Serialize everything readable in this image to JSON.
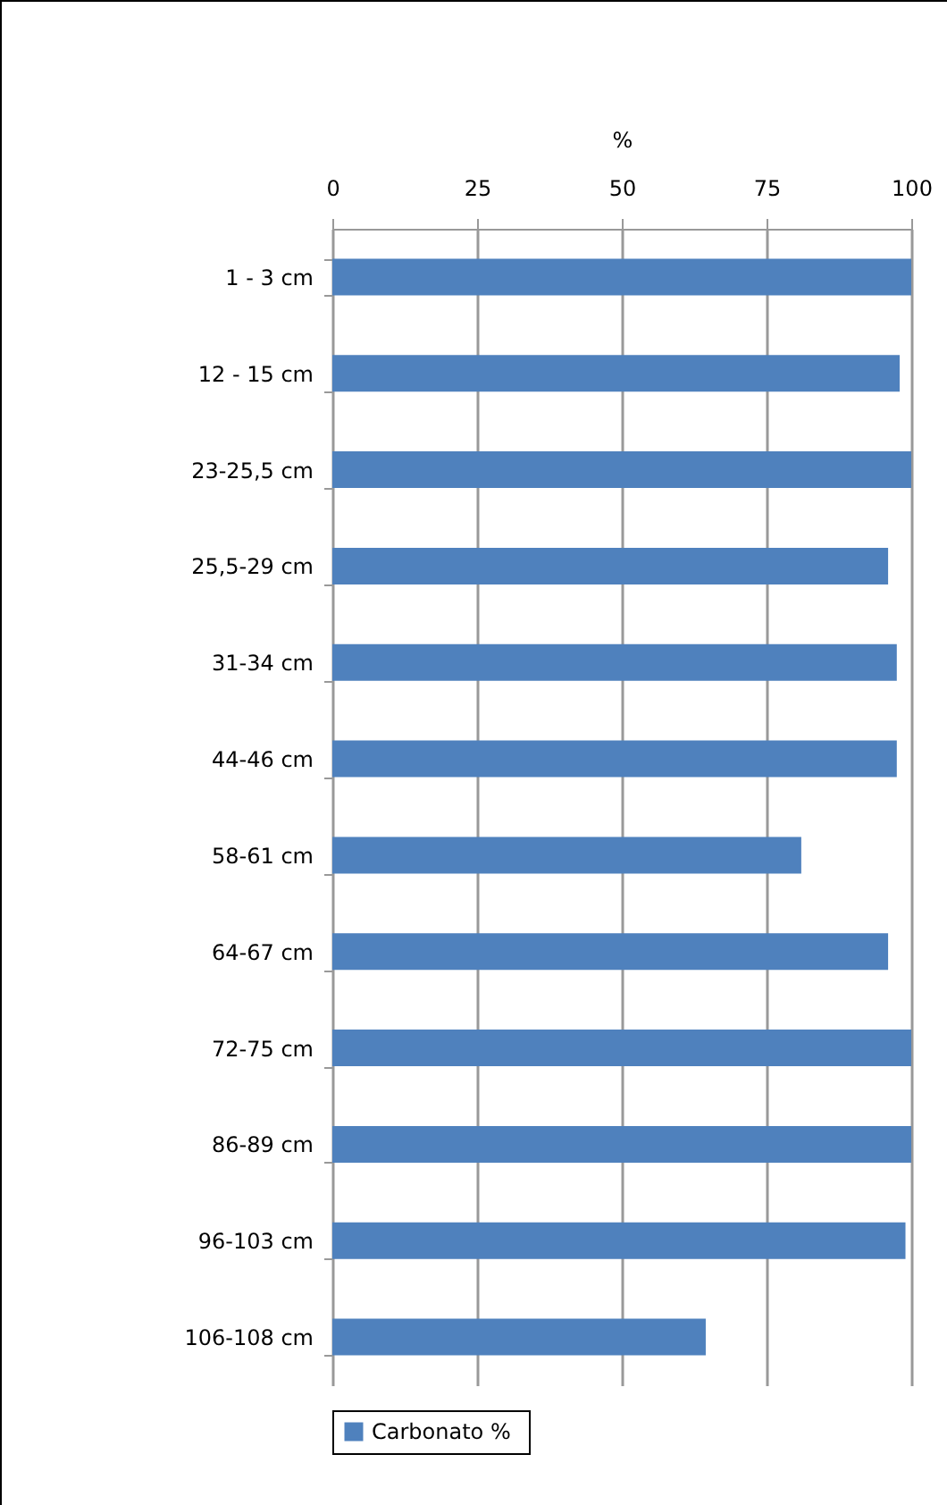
{
  "chart_data": {
    "type": "bar",
    "orientation": "horizontal",
    "xlabel": "%",
    "categories": [
      "1 - 3  cm",
      "12 - 15 cm",
      "23-25,5 cm",
      "25,5-29 cm",
      "31-34 cm",
      "44-46 cm",
      "58-61 cm",
      "64-67 cm",
      "72-75 cm",
      "86-89 cm",
      "96-103 cm",
      "106-108 cm"
    ],
    "series": [
      {
        "name": "Carbonato  %",
        "color": "#4f81bd",
        "values": [
          100,
          98,
          100,
          96,
          97.5,
          97.5,
          81,
          96,
          100,
          100,
          99,
          64.5
        ]
      }
    ],
    "xlim": [
      0,
      100
    ],
    "xticks": [
      0,
      25,
      50,
      75,
      100
    ],
    "grid": "x",
    "legend": "bottom"
  }
}
